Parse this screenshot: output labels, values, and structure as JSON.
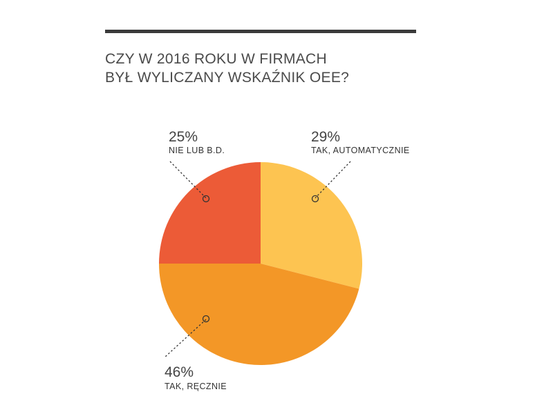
{
  "chart_data": {
    "type": "pie",
    "title_lines": [
      "CZY W 2016 ROKU W FIRMACH",
      "BYŁ WYLICZANY WSKAŹNIK OEE?"
    ],
    "slices": [
      {
        "percent_label": "29%",
        "label": "TAK, AUTOMATYCZNIE",
        "value": 29,
        "color": "#FDC451"
      },
      {
        "percent_label": "46%",
        "label": "TAK, RĘCZNIE",
        "value": 46,
        "color": "#F39727"
      },
      {
        "percent_label": "25%",
        "label": "NIE LUB B.D.",
        "value": 25,
        "color": "#EC5B37"
      }
    ],
    "legend": "none"
  }
}
